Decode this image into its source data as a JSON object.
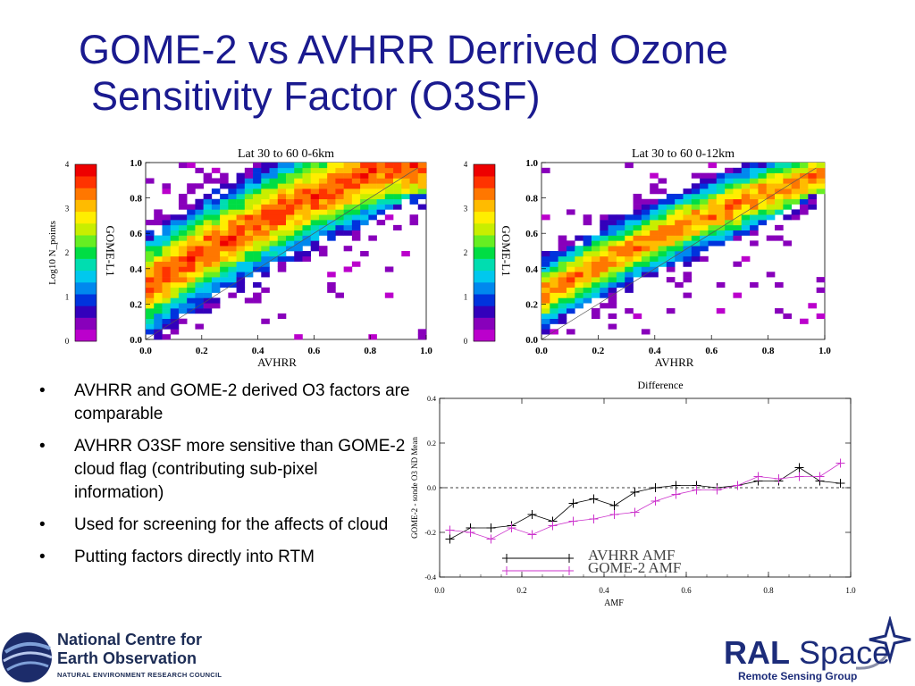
{
  "title": {
    "line1": "GOME-2 vs AVHRR Derrived Ozone",
    "line2": "Sensitivity Factor (O3SF)"
  },
  "bullets": [
    "AVHRR and GOME-2 derived O3 factors are comparable",
    "AVHRR O3SF more sensitive than GOME-2 cloud flag (contributing sub-pixel information)",
    "Used for screening for the affects of cloud",
    "Putting factors directly into RTM"
  ],
  "logos": {
    "nceo_line1": "National Centre for",
    "nceo_line2": "Earth Observation",
    "nceo_line3": "NATURAL ENVIRONMENT RESEARCH COUNCIL",
    "ral_bold": "RAL",
    "ral_light": "Space",
    "ral_sub": "Remote Sensing Group"
  },
  "chart_data": [
    {
      "type": "heatmap",
      "title": "Lat 30 to 60 0-6km",
      "xlabel": "AVHRR",
      "ylabel": "GOME-L1",
      "xlim": [
        0,
        1.0
      ],
      "ylim": [
        0,
        1.0
      ],
      "xticks": [
        "0.0",
        "0.2",
        "0.4",
        "0.6",
        "0.8",
        "1.0"
      ],
      "yticks": [
        "0.0",
        "0.2",
        "0.4",
        "0.6",
        "0.8",
        "1.0"
      ],
      "colorbar": {
        "label": "Log10 N_points",
        "range": [
          0,
          4
        ],
        "ticks": [
          "0",
          "1",
          "2",
          "3",
          "4"
        ]
      },
      "density_model": {
        "center_slope": 1.0,
        "center_offset": 0.3,
        "spread": 0.22,
        "peak_log10": 3.5
      }
    },
    {
      "type": "heatmap",
      "title": "Lat 30 to 60 0-12km",
      "xlabel": "AVHRR",
      "ylabel": "GOME-L1",
      "xlim": [
        0,
        1.0
      ],
      "ylim": [
        0,
        1.0
      ],
      "xticks": [
        "0.0",
        "0.2",
        "0.4",
        "0.6",
        "0.8",
        "1.0"
      ],
      "yticks": [
        "0.0",
        "0.2",
        "0.4",
        "0.6",
        "0.8",
        "1.0"
      ],
      "colorbar": {
        "label": "",
        "range": [
          0,
          4
        ],
        "ticks": [
          "0",
          "1",
          "2",
          "3",
          "4"
        ]
      },
      "density_model": {
        "center_slope": 0.9,
        "center_offset": 0.25,
        "spread": 0.15,
        "peak_log10": 3.3
      }
    },
    {
      "type": "line",
      "title": "Difference",
      "xlabel": "AMF",
      "ylabel": "GOME-2 - sonde O3 ND Mean",
      "xlim": [
        0,
        1.0
      ],
      "ylim": [
        -0.4,
        0.4
      ],
      "xticks": [
        "0.0",
        "0.2",
        "0.4",
        "0.6",
        "0.8",
        "1.0"
      ],
      "yticks": [
        "-0.4",
        "-0.2",
        "0.0",
        "0.2",
        "0.4"
      ],
      "x": [
        0.025,
        0.075,
        0.125,
        0.175,
        0.225,
        0.275,
        0.325,
        0.375,
        0.425,
        0.475,
        0.525,
        0.575,
        0.625,
        0.675,
        0.725,
        0.775,
        0.825,
        0.875,
        0.925,
        0.975
      ],
      "series": [
        {
          "name": "AVHRR AMF",
          "color": "#000000",
          "values": [
            -0.23,
            -0.18,
            -0.18,
            -0.17,
            -0.12,
            -0.15,
            -0.07,
            -0.05,
            -0.08,
            -0.02,
            0.0,
            0.01,
            0.01,
            0.0,
            0.01,
            0.03,
            0.03,
            0.09,
            0.03,
            0.02
          ]
        },
        {
          "name": "GOME-2 AMF",
          "color": "#cc33cc",
          "values": [
            -0.19,
            -0.2,
            -0.23,
            -0.18,
            -0.21,
            -0.17,
            -0.15,
            -0.14,
            -0.12,
            -0.11,
            -0.06,
            -0.03,
            -0.01,
            -0.01,
            0.01,
            0.05,
            0.04,
            0.05,
            0.05,
            0.11
          ]
        }
      ],
      "reference_line": 0.0
    }
  ]
}
